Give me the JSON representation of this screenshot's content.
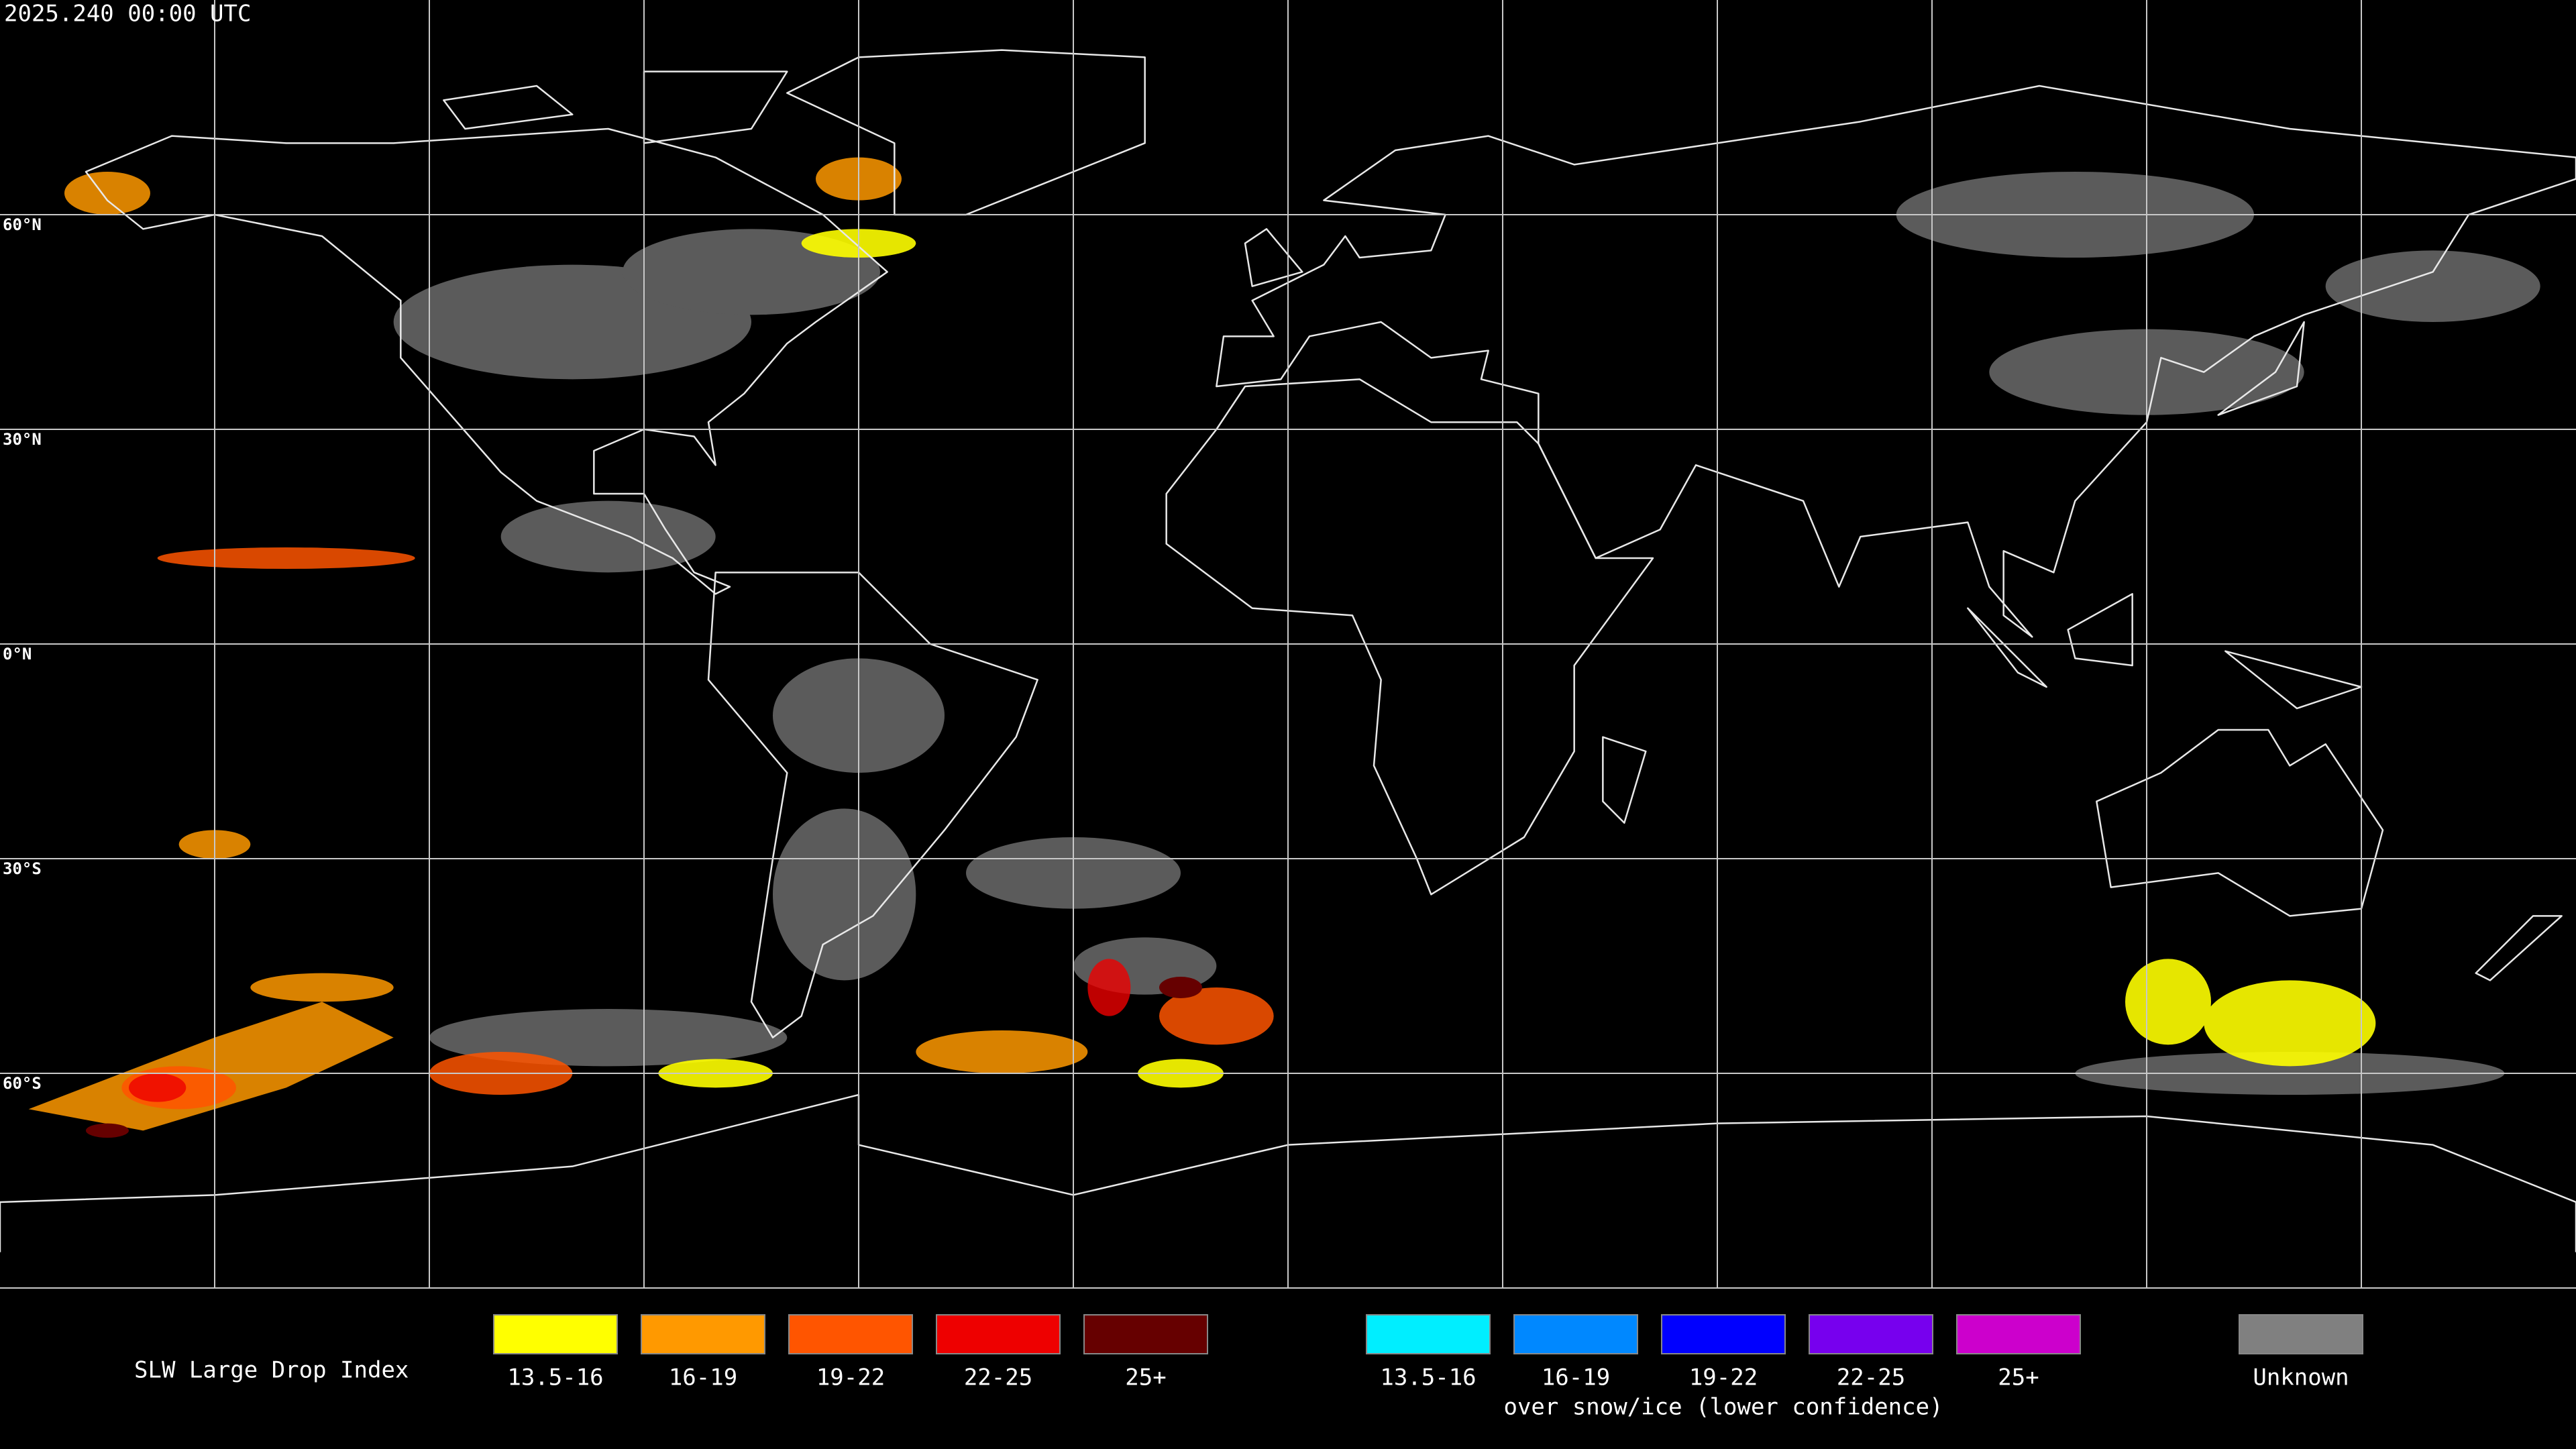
{
  "timestamp": "2025.240 00:00 UTC",
  "latitude_labels": [
    "60°N",
    "30°N",
    "0°N",
    "30°S",
    "60°S"
  ],
  "legend": {
    "title": "SLW Large Drop Index",
    "groups": [
      {
        "items": [
          {
            "label": "13.5-16",
            "color": "#ffff00"
          },
          {
            "label": "16-19",
            "color": "#ff9900"
          },
          {
            "label": "19-22",
            "color": "#ff5500"
          },
          {
            "label": "22-25",
            "color": "#ee0000"
          },
          {
            "label": "25+",
            "color": "#660000"
          }
        ]
      },
      {
        "items": [
          {
            "label": "13.5-16",
            "color": "#00eeff"
          },
          {
            "label": "16-19",
            "color": "#0088ff"
          },
          {
            "label": "19-22",
            "color": "#0000ff"
          },
          {
            "label": "22-25",
            "color": "#7700ee"
          },
          {
            "label": "25+",
            "color": "#cc00cc"
          }
        ],
        "caption": "over snow/ice (lower confidence)"
      },
      {
        "items": [
          {
            "label": "Unknown",
            "color": "#808080"
          }
        ]
      }
    ]
  }
}
